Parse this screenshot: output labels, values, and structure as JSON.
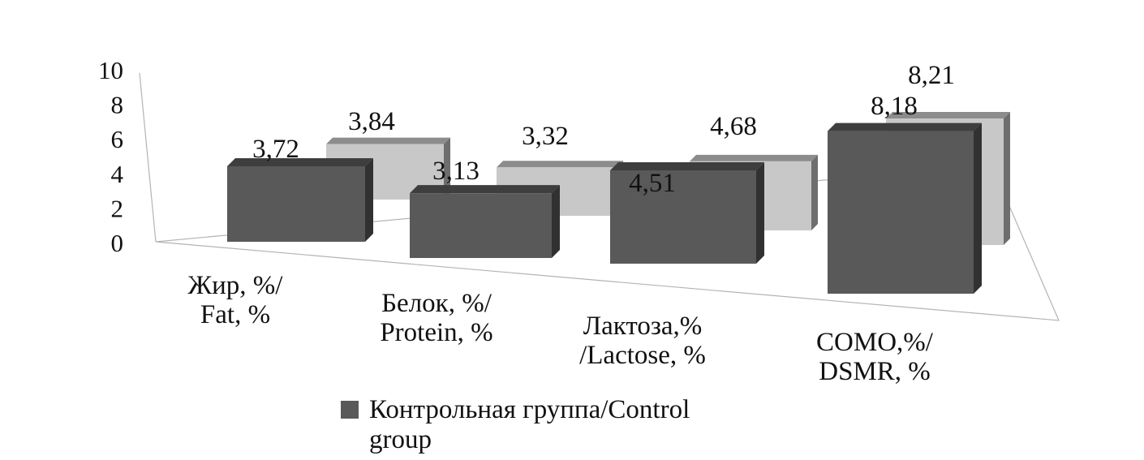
{
  "chart_data": {
    "type": "bar",
    "variant": "3d-clustered",
    "categories": [
      [
        "Жир, %/",
        "Fat, %"
      ],
      [
        "Белок, %/",
        "Protein, %"
      ],
      [
        "Лактоза,%",
        "/Lactose, %"
      ],
      [
        "СОМО,%/",
        "DSMR, %"
      ]
    ],
    "series": [
      {
        "name": "Контрольная группа/Control group",
        "color": "#595959",
        "values": [
          3.72,
          3.13,
          4.51,
          8.18
        ],
        "labels": [
          "3,72",
          "3,13",
          "4,51",
          "8,18"
        ]
      },
      {
        "color": "#c8c8c8",
        "values": [
          3.84,
          3.32,
          4.68,
          8.21
        ],
        "labels": [
          "3,84",
          "3,32",
          "4,68",
          "8,21"
        ]
      }
    ],
    "yticks": [
      "0",
      "2",
      "4",
      "6",
      "8",
      "10"
    ],
    "ylim": [
      0,
      10
    ],
    "title": "",
    "xlabel": "",
    "ylabel": "",
    "legend": {
      "placement": "bottom",
      "lines": [
        "Контрольная группа/Control",
        "group"
      ]
    }
  }
}
